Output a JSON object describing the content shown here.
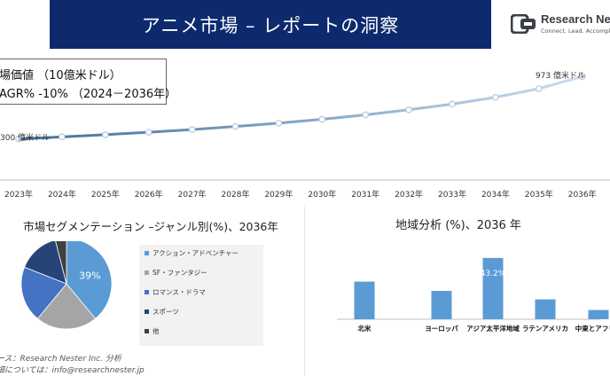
{
  "header": {
    "title": "アニメ市場 – レポートの洞察",
    "logo_name": "Research Nester",
    "logo_tagline": "Connect. Lead. Accomplish."
  },
  "info_box": {
    "line1": "場価値 （10億米ドル）",
    "line2": "AGR% -10% （2024－2036年）"
  },
  "sources": {
    "line1": "ース：Research Nester Inc. 分析",
    "line2": "細については：info@researchnester.jp"
  },
  "colors": {
    "line": "#3f6f9f",
    "line_end": "#c9dcf0",
    "pie": [
      "#5b9bd5",
      "#a5a5a5",
      "#4472c4",
      "#264478",
      "#404040"
    ],
    "bars": "#5b9bd5",
    "title_bar": "#0d2a6e"
  },
  "chart_data": [
    {
      "type": "line",
      "x": [
        "2023年",
        "2024年",
        "2025年",
        "2026年",
        "2027年",
        "2028年",
        "2029年",
        "2030年",
        "2031年",
        "2032年",
        "2033年",
        "2034年",
        "2035年",
        "2036年"
      ],
      "series": [
        {
          "values": [
            300,
            322,
            345,
            372,
            401,
            434,
            470,
            512,
            560,
            614,
            676,
            749,
            842,
            973
          ]
        }
      ],
      "start_label": "300 億米ドル",
      "end_label": "973 億米ドル",
      "ylim": [
        0,
        1100
      ],
      "grid": false
    },
    {
      "type": "pie",
      "title": "市場セグメンテーション –ジャンル別(%)、2036年",
      "labels": [
        "アクション・アドベンチャー",
        "SF・ファンタジー",
        "ロマンス・ドラマ",
        "スポーツ",
        "他"
      ],
      "values": [
        39,
        22,
        20,
        15,
        4
      ],
      "data_labels": [
        "39%"
      ],
      "legend_position": "right"
    },
    {
      "type": "bar",
      "title": "地域分析 (%)、2036 年",
      "categories": [
        "北米",
        "ヨーロッパ",
        "アジア太平洋地域",
        "ラテンアメリカ",
        "中東とアフリカ"
      ],
      "values": [
        26.5,
        20,
        43.2,
        14,
        6.5
      ],
      "data_labels": [
        "",
        "",
        "43.2%",
        "",
        ""
      ],
      "ylim": [
        0,
        48
      ],
      "grid": false
    }
  ]
}
